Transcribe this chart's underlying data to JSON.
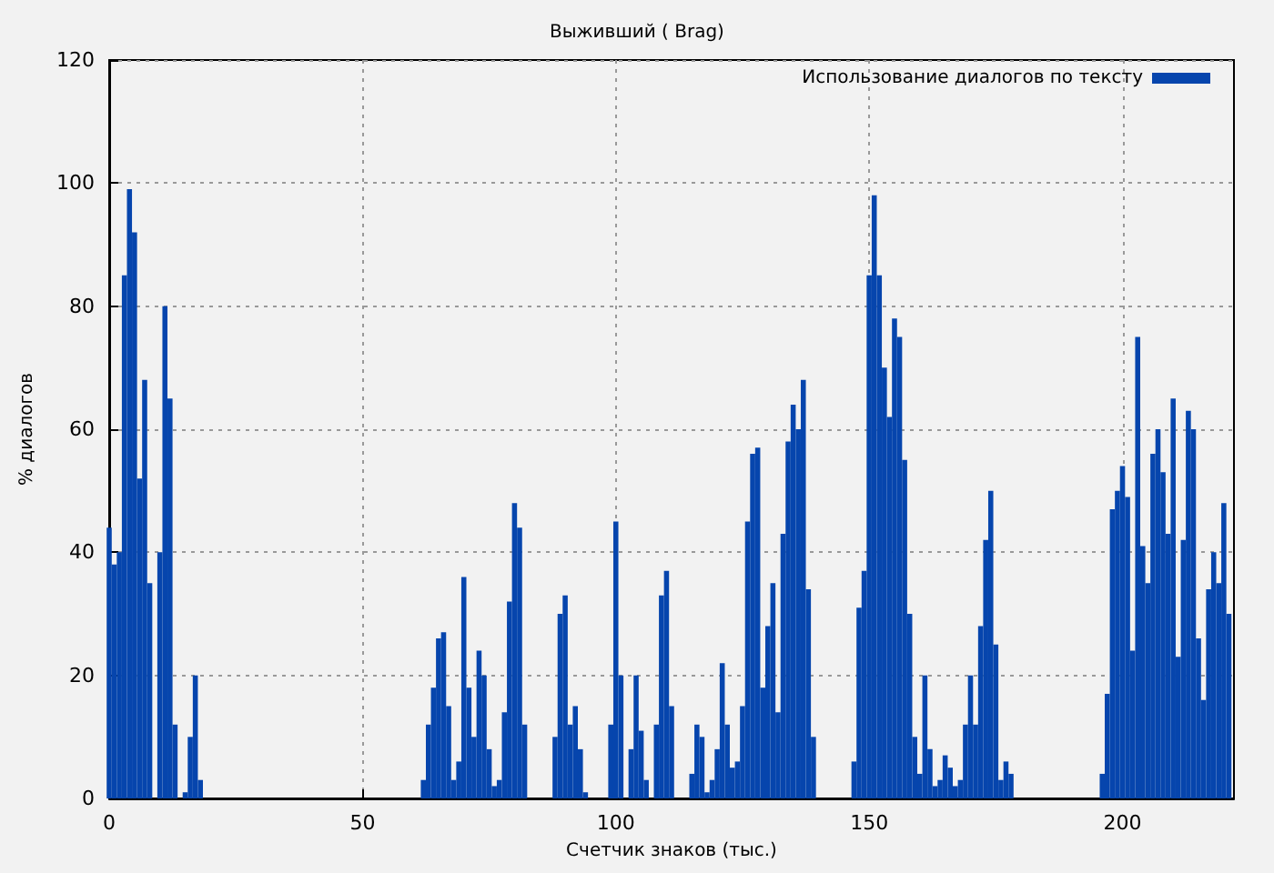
{
  "chart_data": {
    "type": "bar",
    "title": "Выживший ( Brag)",
    "xlabel": "Счетчик знаков (тыс.)",
    "ylabel": "% диалогов",
    "x": [
      0,
      1,
      2,
      3,
      4,
      5,
      6,
      7,
      8,
      10,
      11,
      12,
      13,
      15,
      16,
      17,
      18,
      62,
      63,
      64,
      65,
      66,
      67,
      68,
      69,
      70,
      71,
      72,
      73,
      74,
      75,
      76,
      77,
      78,
      79,
      80,
      81,
      82,
      88,
      89,
      90,
      91,
      92,
      93,
      94,
      99,
      100,
      101,
      103,
      104,
      105,
      106,
      108,
      109,
      110,
      111,
      115,
      116,
      117,
      118,
      119,
      120,
      121,
      122,
      123,
      124,
      125,
      126,
      127,
      128,
      129,
      130,
      131,
      132,
      133,
      134,
      135,
      136,
      137,
      138,
      139,
      147,
      148,
      149,
      150,
      151,
      152,
      153,
      154,
      155,
      156,
      157,
      158,
      159,
      160,
      161,
      162,
      163,
      164,
      165,
      166,
      167,
      168,
      169,
      170,
      171,
      172,
      173,
      174,
      175,
      176,
      177,
      178,
      196,
      197,
      198,
      199,
      200,
      201,
      202,
      203,
      204,
      205,
      206,
      207,
      208,
      209,
      210,
      211,
      212,
      213,
      214,
      215,
      216,
      217,
      218,
      219,
      220,
      221
    ],
    "series": [
      {
        "name": "Использование диалогов по тексту",
        "color": "#0645ad",
        "values": [
          44,
          38,
          40,
          85,
          99,
          92,
          52,
          68,
          35,
          40,
          80,
          65,
          12,
          1,
          10,
          20,
          3,
          3,
          12,
          18,
          26,
          27,
          15,
          3,
          6,
          36,
          18,
          10,
          24,
          20,
          8,
          2,
          3,
          14,
          32,
          48,
          44,
          12,
          10,
          30,
          33,
          12,
          15,
          8,
          1,
          12,
          45,
          20,
          8,
          20,
          11,
          3,
          12,
          33,
          37,
          15,
          4,
          12,
          10,
          1,
          3,
          8,
          22,
          12,
          5,
          6,
          15,
          45,
          56,
          57,
          18,
          28,
          35,
          14,
          43,
          58,
          64,
          60,
          68,
          34,
          10,
          6,
          31,
          37,
          85,
          98,
          85,
          70,
          62,
          78,
          75,
          55,
          30,
          10,
          4,
          20,
          8,
          2,
          3,
          7,
          5,
          2,
          3,
          12,
          20,
          12,
          28,
          42,
          50,
          25,
          3,
          6,
          4,
          4,
          17,
          47,
          50,
          54,
          49,
          24,
          75,
          41,
          35,
          56,
          60,
          53,
          43,
          65,
          23,
          42,
          63,
          60,
          26,
          16,
          34,
          40,
          35,
          48,
          30
        ]
      }
    ],
    "xlim": [
      0,
      222
    ],
    "xticks": [
      0,
      50,
      100,
      150,
      200
    ],
    "ylim": [
      0,
      120
    ],
    "yticks": [
      0,
      20,
      40,
      60,
      80,
      100,
      120
    ],
    "grid": true,
    "legend": "top right"
  }
}
